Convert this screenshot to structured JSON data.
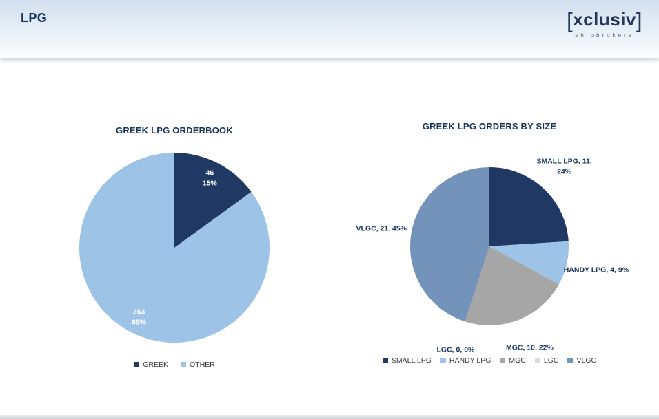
{
  "header": {
    "title": "LPG",
    "logo": {
      "bracket_left": "[",
      "name": "xclusiv",
      "bracket_right": "]",
      "tagline": "shipbrokers"
    }
  },
  "colors": {
    "navy": "#1F3864",
    "light_blue": "#9DC3E6",
    "medium_blue": "#7493BB",
    "gray": "#A6A6A6",
    "light_gray": "#D6DCE4",
    "title_text": "#17365D"
  },
  "chart_data": [
    {
      "type": "pie",
      "title": "GREEK LPG ORDERBOOK",
      "labels": [
        "GREEK",
        "OTHER"
      ],
      "values": [
        46,
        263
      ],
      "percents": [
        15,
        85
      ],
      "colors": [
        "#1F3864",
        "#9DC3E6"
      ],
      "data_labels": [
        [
          "46",
          "15%"
        ],
        [
          "263",
          "85%"
        ]
      ],
      "legend_position": "bottom",
      "label_placement": "inside"
    },
    {
      "type": "pie",
      "title": "GREEK LPG ORDERS BY SIZE",
      "labels": [
        "SMALL LPG",
        "HANDY LPG",
        "MGC",
        "LGC",
        "VLGC"
      ],
      "values": [
        11,
        4,
        10,
        0,
        21
      ],
      "percents": [
        24,
        9,
        22,
        0,
        45
      ],
      "colors": [
        "#1F3864",
        "#9DC3E6",
        "#A6A6A6",
        "#D6DCE4",
        "#7493BB"
      ],
      "data_labels": [
        [
          "SMALL LPG, 11,",
          "24%"
        ],
        [
          "HANDY LPG, 4, 9%"
        ],
        [
          "MGC, 10, 22%"
        ],
        [
          "LGC, 0, 0%"
        ],
        [
          "VLGC, 21, 45%"
        ]
      ],
      "legend_position": "bottom",
      "label_placement": "outside"
    }
  ]
}
